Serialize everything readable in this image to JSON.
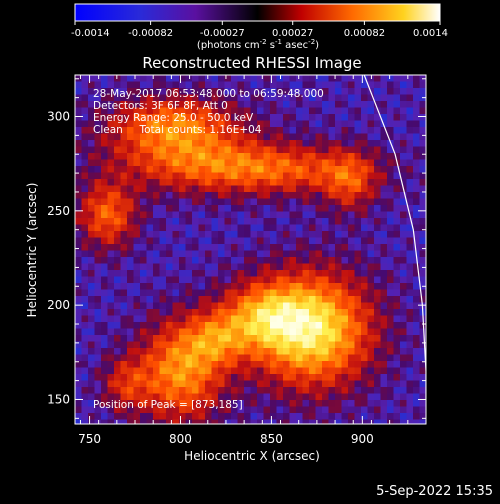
{
  "chart_data": {
    "type": "heatmap",
    "title": "Reconstructed RHESSI Image",
    "xlabel": "Heliocentric X (arcsec)",
    "ylabel": "Heliocentric Y (arcsec)",
    "xlim": [
      742,
      935
    ],
    "ylim": [
      137,
      322
    ],
    "xticks": [
      750,
      800,
      850,
      900
    ],
    "yticks": [
      150,
      200,
      250,
      300
    ],
    "colorbar": {
      "ticks": [
        "-0.0014",
        "-0.00082",
        "-0.00027",
        "0.00027",
        "0.00082",
        "0.0014"
      ],
      "unit_label": "(photons cm",
      "unit_sup1": "-2",
      "unit_mid1": " s",
      "unit_sup2": "-1",
      "unit_mid2": " asec",
      "unit_sup3": "-2",
      "unit_end": ")",
      "range": [
        -0.0014,
        0.0014
      ]
    },
    "annotations": [
      "28-May-2017 06:53:48.000 to 06:59:48.000",
      "Detectors: 3F 6F 8F, Att 0",
      "Energy Range: 25.0 - 50.0 keV",
      "Clean     Total counts: 1.16E+04"
    ],
    "peak_label": "Position of Peak = [873,185]",
    "peak": [
      873,
      185
    ],
    "sources": [
      {
        "x": 872,
        "y": 187,
        "sx": 22,
        "sy": 20,
        "amp": 1.0
      },
      {
        "x": 845,
        "y": 194,
        "sx": 16,
        "sy": 12,
        "amp": 0.55
      },
      {
        "x": 800,
        "y": 165,
        "sx": 16,
        "sy": 18,
        "amp": 0.7
      },
      {
        "x": 820,
        "y": 182,
        "sx": 12,
        "sy": 10,
        "amp": 0.45
      },
      {
        "x": 850,
        "y": 272,
        "sx": 35,
        "sy": 9,
        "amp": 0.55
      },
      {
        "x": 800,
        "y": 283,
        "sx": 28,
        "sy": 13,
        "amp": 0.5
      },
      {
        "x": 760,
        "y": 248,
        "sx": 11,
        "sy": 12,
        "amp": 0.55
      },
      {
        "x": 795,
        "y": 298,
        "sx": 22,
        "sy": 9,
        "amp": 0.4
      },
      {
        "x": 893,
        "y": 265,
        "sx": 10,
        "sy": 11,
        "amp": 0.4
      },
      {
        "x": 770,
        "y": 158,
        "sx": 9,
        "sy": 10,
        "amp": 0.35
      }
    ],
    "limb": [
      [
        901,
        322
      ],
      [
        918,
        280
      ],
      [
        928,
        240
      ],
      [
        933,
        200
      ],
      [
        935,
        165
      ],
      [
        935,
        150
      ]
    ]
  },
  "footer": {
    "date": "5-Sep-2022 15:35"
  }
}
